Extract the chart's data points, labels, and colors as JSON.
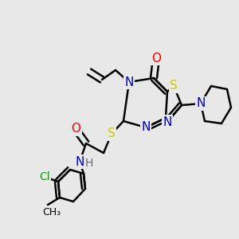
{
  "bg_color": "#e8e8e8",
  "line_color": "#000000",
  "line_width": 1.8,
  "atom_colors": {
    "N": "#0000cc",
    "O": "#ff0000",
    "S": "#cccc00",
    "Cl": "#00aa00",
    "H": "#666666",
    "C": "#000000"
  },
  "font_size": 11
}
